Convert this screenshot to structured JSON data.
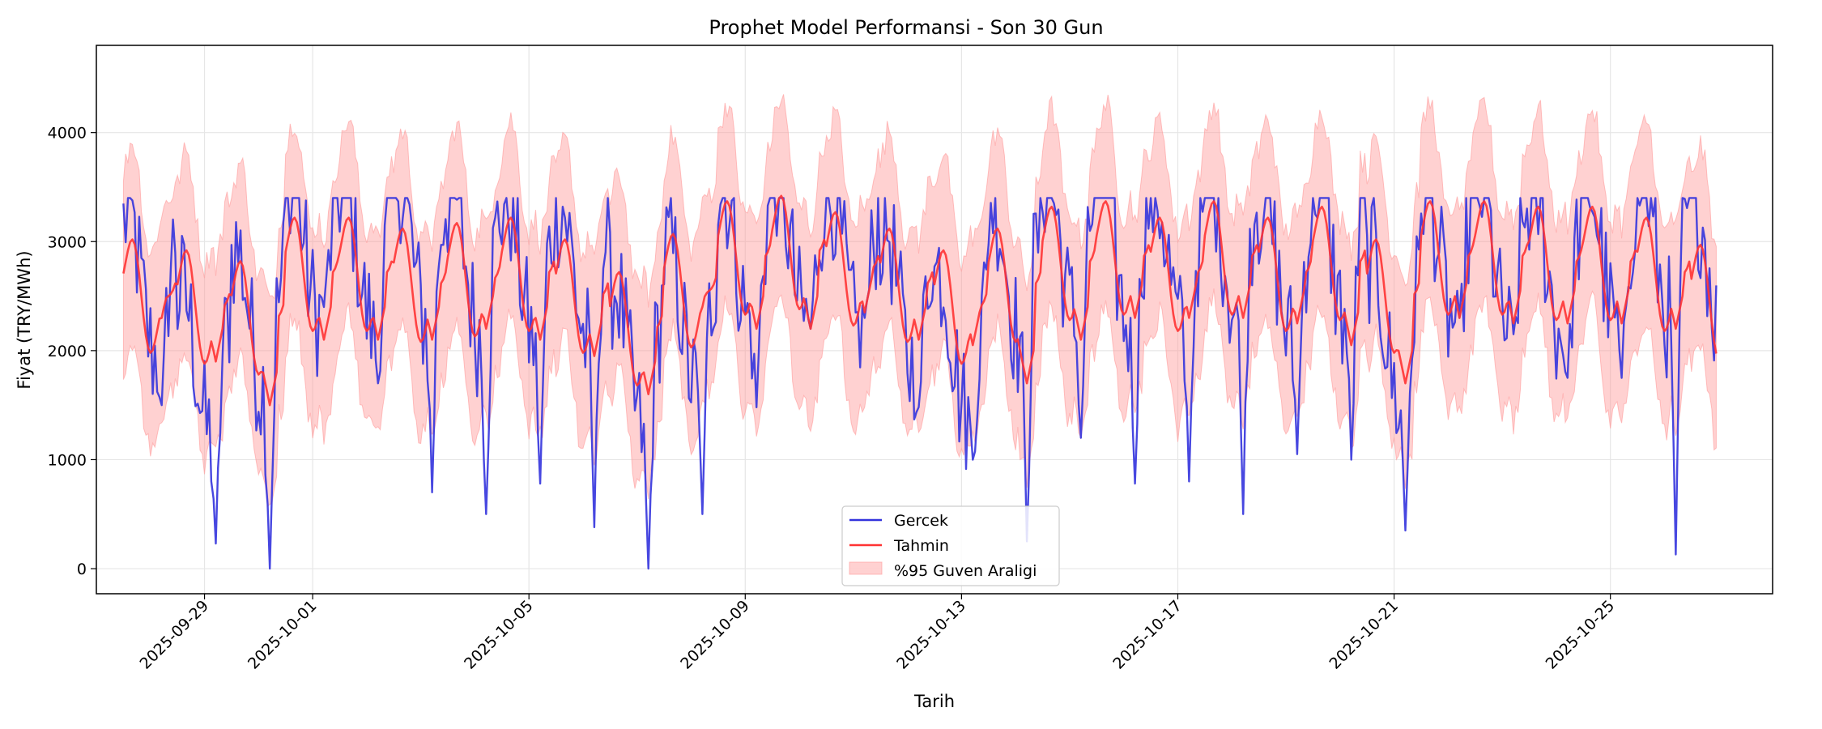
{
  "chart_data": {
    "type": "line",
    "title": "Prophet Model Performansi - Son 30 Gun",
    "xlabel": "Tarih",
    "ylabel": "Fiyat (TRY/MWh)",
    "x_start": "2025-09-27 12:00",
    "x_end": "2025-10-26 23:00",
    "xlim": [
      "2025-09-27",
      "2025-10-28"
    ],
    "ylim": [
      -230,
      4800
    ],
    "xticks": [
      "2025-09-29",
      "2025-10-01",
      "2025-10-05",
      "2025-10-09",
      "2025-10-13",
      "2025-10-17",
      "2025-10-21",
      "2025-10-25"
    ],
    "yticks": [
      0,
      1000,
      2000,
      3000,
      4000
    ],
    "grid": true,
    "legend_position": "bottom-center",
    "series": [
      {
        "name": "Gercek",
        "color": "#3333dd",
        "day_means": [
          2600,
          1900,
          2300,
          3000,
          2900,
          2950,
          2800,
          2750,
          2700,
          1950,
          2300,
          2900,
          2950,
          2800,
          2500,
          2100,
          2750,
          2950,
          2900,
          2800,
          3000,
          2750,
          2950,
          2200,
          2900,
          2850,
          2800,
          2900,
          2950,
          2700
        ],
        "day_mins": [
          1500,
          230,
          0,
          2400,
          1700,
          700,
          500,
          780,
          380,
          0,
          500,
          1480,
          2200,
          2300,
          1480,
          1000,
          250,
          1200,
          780,
          800,
          500,
          1050,
          1000,
          350,
          2300,
          2150,
          1750,
          1750,
          130,
          1400
        ]
      },
      {
        "name": "Tahmin",
        "color": "#ff3333",
        "day_means": [
          2500,
          2400,
          2300,
          2700,
          2700,
          2600,
          2650,
          2700,
          2500,
          2200,
          2550,
          2850,
          2900,
          2750,
          2600,
          2400,
          2600,
          2800,
          2850,
          2700,
          2850,
          2700,
          2800,
          2500,
          2850,
          2850,
          2800,
          2800,
          2700,
          2450
        ],
        "day_mins": [
          2300,
          1900,
          1500,
          2100,
          2100,
          2100,
          2200,
          2100,
          1950,
          1600,
          2400,
          2200,
          2200,
          2350,
          2100,
          2050,
          1700,
          2100,
          2300,
          2300,
          2300,
          2250,
          2050,
          1700,
          2300,
          2250,
          2250,
          2250,
          2200,
          2100
        ]
      }
    ],
    "band": {
      "name": "%95 Guven Araligi",
      "color": "#ff9999",
      "half_width": 900
    },
    "legend_entries": [
      "Gercek",
      "Tahmin",
      "%95 Guven Araligi"
    ]
  }
}
